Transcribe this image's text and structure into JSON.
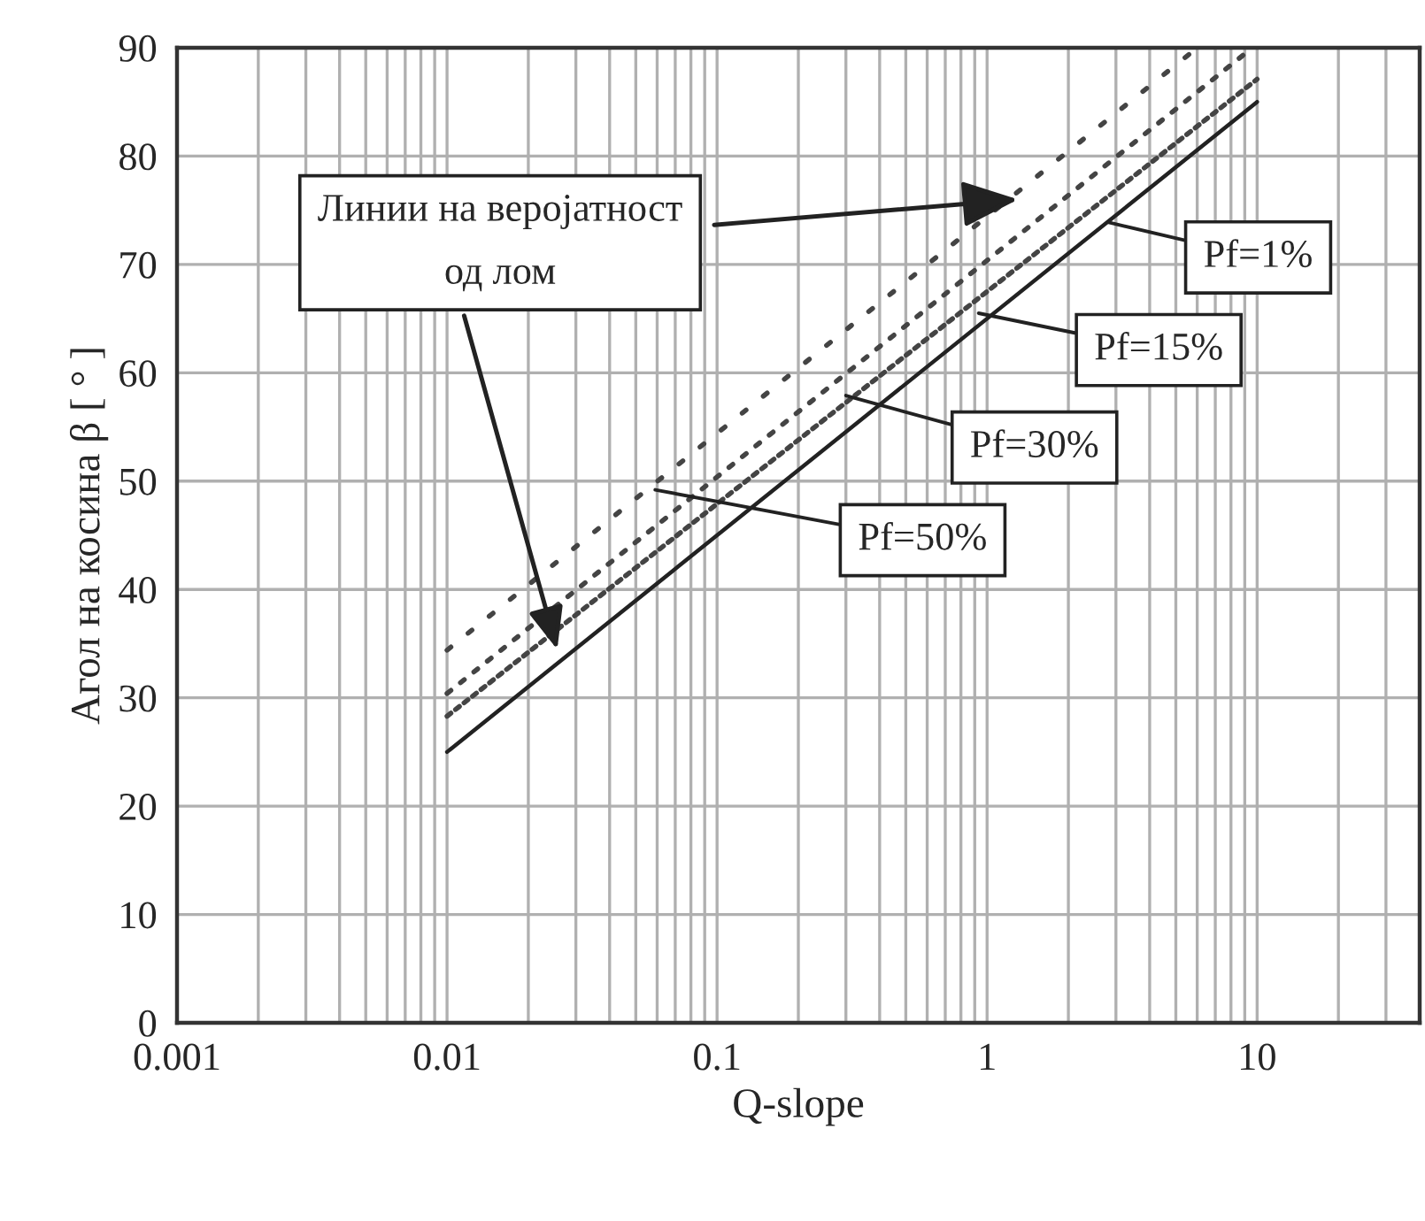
{
  "chart_data": {
    "type": "line",
    "xlabel": "Q-slope",
    "ylabel": "Агол на косина β [ ° ]",
    "log": "x",
    "xlim": [
      0.001,
      40
    ],
    "ylim": [
      0,
      90
    ],
    "xticks": [
      0.001,
      0.01,
      0.1,
      1,
      10
    ],
    "yticks": [
      0,
      10,
      20,
      30,
      40,
      50,
      60,
      70,
      80,
      90
    ],
    "grid": true,
    "series": [
      {
        "color": "#222222",
        "line_style": "solid",
        "x": [
          0.01,
          10
        ],
        "values": [
          25,
          85
        ]
      },
      {
        "color": "#444444",
        "line_style": "dotted",
        "x": [
          0.01,
          10
        ],
        "values": [
          28.3,
          87.1
        ]
      },
      {
        "color": "#444444",
        "line_style": "dotted",
        "x": [
          0.01,
          9.6
        ],
        "values": [
          30.4,
          90
        ]
      },
      {
        "color": "#444444",
        "line_style": "dotted",
        "x": [
          0.01,
          6.0
        ],
        "values": [
          34.4,
          90
        ]
      }
    ],
    "annotations": [
      {
        "text": "Линии на веројатност\nод лом",
        "x": 1.3,
        "y": 76
      },
      {
        "text": "Pf=1%",
        "x": 2.8,
        "y": 73.9
      },
      {
        "text": "Pf=15%",
        "x": 0.93,
        "y": 65.5
      },
      {
        "text": "Pf=30%",
        "x": 0.3,
        "y": 57.9
      },
      {
        "text": "Pf=50%",
        "x": 0.059,
        "y": 49.2
      }
    ]
  }
}
